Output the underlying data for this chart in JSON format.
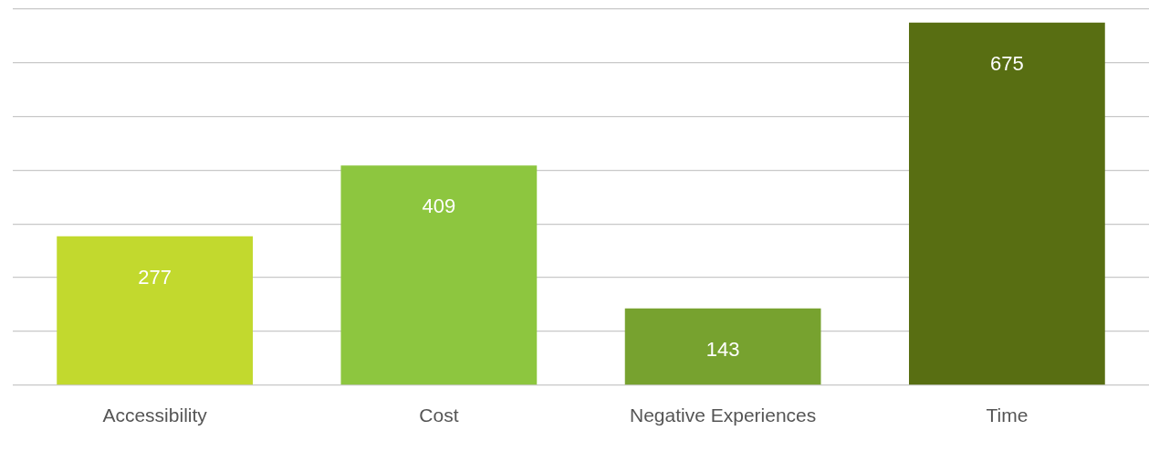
{
  "chart_data": {
    "type": "bar",
    "categories": [
      "Accessibility",
      "Cost",
      "Negative Experiences",
      "Time"
    ],
    "values": [
      277,
      409,
      143,
      675
    ],
    "colors": [
      "#c2d92e",
      "#8dc63f",
      "#77a22f",
      "#586e12"
    ],
    "ylim": [
      0,
      700
    ],
    "yticks": [
      {
        "value": 0,
        "label": null
      },
      {
        "value": 100,
        "label": null
      },
      {
        "value": 200,
        "label": null
      },
      {
        "value": 300,
        "label": null
      },
      {
        "value": 400,
        "label": null
      },
      {
        "value": 500,
        "label": null
      },
      {
        "value": 600,
        "label": null
      },
      {
        "value": 700,
        "label": null
      }
    ],
    "grid": "y",
    "tick_labels": "x",
    "data_labels": true,
    "legend": false
  }
}
